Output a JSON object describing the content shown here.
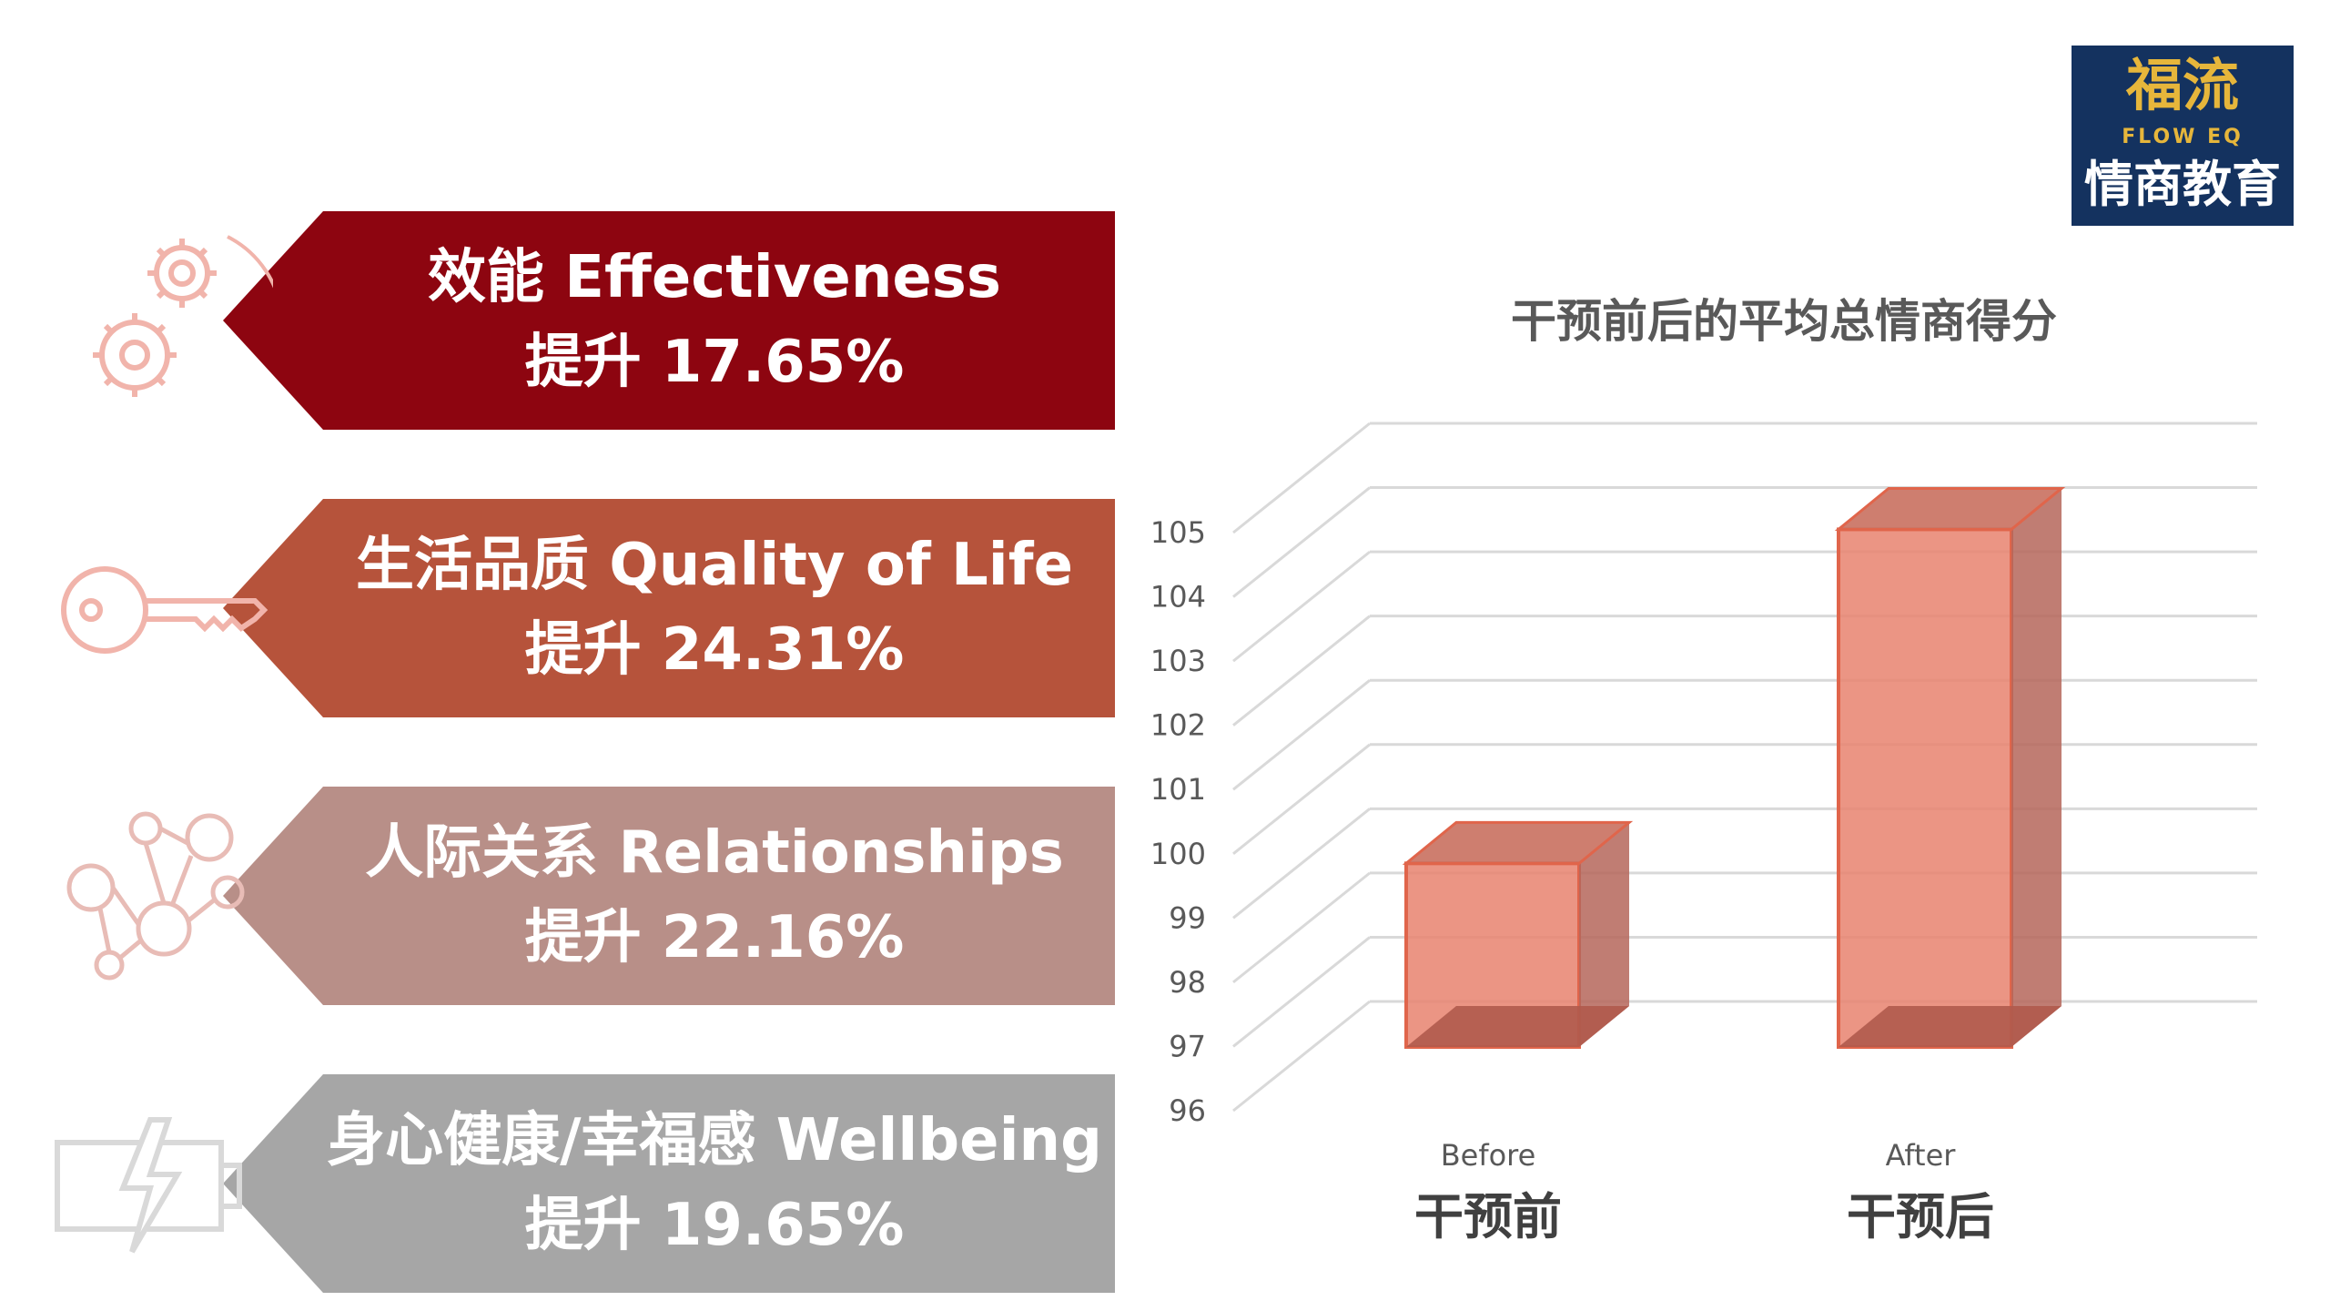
{
  "logo": {
    "mark": "福流",
    "sub": "FLOW EQ",
    "main": "情商教育"
  },
  "banners": [
    {
      "title": "效能 Effectiveness",
      "value": "提升 17.65%",
      "color": "#8d0510",
      "icon": "gears-icon"
    },
    {
      "title": "生活品质 Quality of Life",
      "value": "提升 24.31%",
      "color": "#b6533b",
      "icon": "key-icon"
    },
    {
      "title": "人际关系 Relationships",
      "value": "提升 22.16%",
      "color": "#b88f88",
      "icon": "network-icon"
    },
    {
      "title": "身心健康/幸福感 Wellbeing",
      "value": "提升 19.65%",
      "color": "#a6a6a6",
      "icon": "battery-icon"
    }
  ],
  "chart_data": {
    "type": "bar",
    "title": "干预前后的平均总情商得分",
    "categories": [
      "干预前",
      "干预后"
    ],
    "category_sublabels": [
      "Before",
      "After"
    ],
    "values": [
      99,
      104.2
    ],
    "ylim": [
      96,
      105
    ],
    "yticks": [
      "96",
      "97",
      "98",
      "99",
      "100",
      "101",
      "102",
      "103",
      "104",
      "105"
    ],
    "grid": true,
    "bar_color": "#e8826f"
  }
}
